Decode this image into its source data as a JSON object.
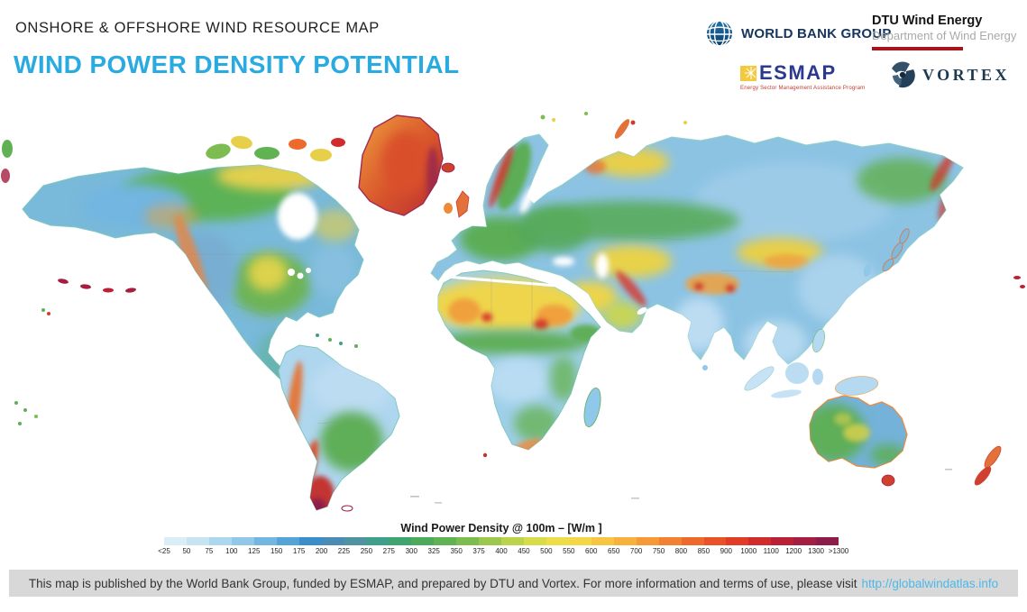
{
  "header": {
    "kicker": "ONSHORE & OFFSHORE WIND RESOURCE MAP",
    "title": "WIND POWER DENSITY POTENTIAL"
  },
  "logos": {
    "world_bank": {
      "label": "WORLD BANK GROUP",
      "icon": "globe-icon"
    },
    "dtu": {
      "title": "DTU Wind Energy",
      "subtitle": "Department of Wind Energy"
    },
    "esmap": {
      "label": "ESMAP",
      "tagline": "Energy Sector Management Assistance Program",
      "icon": "sun-icon"
    },
    "vortex": {
      "label": "VORTEX",
      "icon": "vortex-swirl-icon"
    }
  },
  "legend": {
    "title": "Wind Power Density @ 100m – [W/m ]",
    "ticks": [
      "<25",
      "50",
      "75",
      "100",
      "125",
      "150",
      "175",
      "200",
      "225",
      "250",
      "275",
      "300",
      "325",
      "350",
      "375",
      "400",
      "450",
      "500",
      "550",
      "600",
      "650",
      "700",
      "750",
      "800",
      "850",
      "900",
      "1000",
      "1100",
      "1200",
      "1300",
      ">1300"
    ],
    "colors": [
      "#daeef8",
      "#c6e4f4",
      "#abd7ef",
      "#8fc8e9",
      "#72b6e1",
      "#55a4d8",
      "#3a8fcb",
      "#4a8cb4",
      "#4f93a0",
      "#3f9f8a",
      "#3fa56f",
      "#4caa5c",
      "#61b253",
      "#7cbc50",
      "#9cc94d",
      "#bcd44b",
      "#d8dc4a",
      "#ecdd49",
      "#f4d746",
      "#f6c642",
      "#f7b13c",
      "#f59a36",
      "#f28231",
      "#ee6a2c",
      "#e95128",
      "#e23b26",
      "#d12b2b",
      "#bb2136",
      "#a51d41",
      "#8e1c4a"
    ]
  },
  "footer": {
    "text": "This  map is published by the World Bank Group, funded by ESMAP, and prepared by DTU and Vortex. For more information and terms of use, please visit",
    "link": "http://globalwindatlas.info"
  },
  "colors": {
    "accent": "#29abe2",
    "footer_bg": "#d8d8d8",
    "link": "#4db8e8",
    "dtu_bar": "#a6141c"
  }
}
